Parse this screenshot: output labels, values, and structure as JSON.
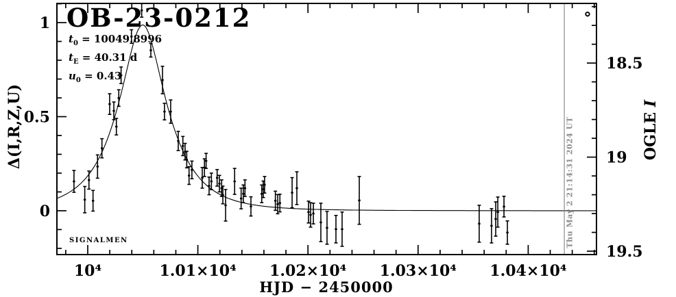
{
  "chart_data": {
    "type": "scatter",
    "title": "OB-23-0212",
    "watermark": "SIGNALMEN",
    "xlabel": "HJD − 2450000",
    "ylabel_left": "Δ(I,R,Z,U)",
    "ylabel_right": {
      "text": "OGLE ",
      "band": "I"
    },
    "params": [
      {
        "var": "t",
        "sub": "0",
        "val": " = 10049.8996"
      },
      {
        "var": "t",
        "sub": "E",
        "val": " = 40.31 d"
      },
      {
        "var": "u",
        "sub": "0",
        "val": " = 0.43"
      }
    ],
    "model": {
      "t0": 10049.8996,
      "tE": 40.31,
      "u0": 0.43,
      "type": "paczynski-point-lens"
    },
    "now_line": {
      "x": 10432.8,
      "label": "Thu May 2 21:14:31 2024 UT"
    },
    "extra_point": {
      "x": 10453.9,
      "y": 1.045,
      "marker": "open-circle"
    },
    "axes": {
      "x": {
        "min": 9972,
        "max": 10462,
        "minor_step": 20,
        "major": [
          {
            "v": 10000,
            "t": "10⁴"
          },
          {
            "v": 10100,
            "t": "1.01×10⁴"
          },
          {
            "v": 10200,
            "t": "1.02×10⁴"
          },
          {
            "v": 10300,
            "t": "1.03×10⁴"
          },
          {
            "v": 10400,
            "t": "1.04×10⁴"
          }
        ]
      },
      "y": {
        "min": -0.233,
        "max": 1.102,
        "minor_step": 0.1,
        "major": [
          {
            "v": 0,
            "t": "0"
          },
          {
            "v": 0.5,
            "t": "0.5"
          },
          {
            "v": 1,
            "t": "1"
          }
        ]
      },
      "y_right": {
        "base": 19.285,
        "minor_step": 0.1,
        "major": [
          {
            "v": 18.5,
            "t": "18.5"
          },
          {
            "v": 19,
            "t": "19"
          },
          {
            "v": 19.5,
            "t": "19.5"
          }
        ]
      }
    },
    "colors": {
      "fg": "#000000",
      "bg": "#ffffff",
      "gray": "#8c8c8c"
    },
    "points_format": [
      "hjd_minus_2450000",
      "delta_mag",
      "err"
    ],
    "points": [
      [
        9987.5,
        0.156,
        0.058
      ],
      [
        9997.3,
        0.059,
        0.07
      ],
      [
        10001.1,
        0.163,
        0.048
      ],
      [
        10004.8,
        0.053,
        0.055
      ],
      [
        10008.9,
        0.235,
        0.062
      ],
      [
        10012.9,
        0.332,
        0.051
      ],
      [
        10019.9,
        0.567,
        0.055
      ],
      [
        10023.7,
        0.531,
        0.047
      ],
      [
        10026.0,
        0.447,
        0.044
      ],
      [
        10028.2,
        0.599,
        0.044
      ],
      [
        10030.3,
        0.72,
        0.044
      ],
      [
        10039.7,
        0.926,
        0.036
      ],
      [
        10049.0,
        1.065,
        0.036
      ],
      [
        10057.3,
        0.853,
        0.036
      ],
      [
        10067.9,
        0.695,
        0.073
      ],
      [
        10069.7,
        0.527,
        0.044
      ],
      [
        10075.3,
        0.527,
        0.062
      ],
      [
        10082.2,
        0.371,
        0.051
      ],
      [
        10086.4,
        0.344,
        0.051
      ],
      [
        10088.4,
        0.314,
        0.044
      ],
      [
        10089.9,
        0.272,
        0.044
      ],
      [
        10092.0,
        0.187,
        0.047
      ],
      [
        10094.6,
        0.217,
        0.047
      ],
      [
        10104.0,
        0.175,
        0.055
      ],
      [
        10106.0,
        0.229,
        0.047
      ],
      [
        10107.5,
        0.265,
        0.04
      ],
      [
        10110.2,
        0.132,
        0.047
      ],
      [
        10112.3,
        0.156,
        0.044
      ],
      [
        10117.5,
        0.175,
        0.044
      ],
      [
        10119.6,
        0.144,
        0.044
      ],
      [
        10121.6,
        0.12,
        0.044
      ],
      [
        10122.7,
        0.084,
        0.047
      ],
      [
        10125.2,
        0.029,
        0.084
      ],
      [
        10133.4,
        0.156,
        0.069
      ],
      [
        10139.3,
        0.065,
        0.055
      ],
      [
        10141.3,
        0.09,
        0.047
      ],
      [
        10142.8,
        0.12,
        0.044
      ],
      [
        10148.2,
        0.023,
        0.051
      ],
      [
        10158.0,
        0.09,
        0.047
      ],
      [
        10159.4,
        0.114,
        0.044
      ],
      [
        10160.6,
        0.138,
        0.044
      ],
      [
        10170.4,
        0.053,
        0.051
      ],
      [
        10172.5,
        0.035,
        0.051
      ],
      [
        10174.5,
        0.041,
        0.047
      ],
      [
        10185.6,
        0.096,
        0.08
      ],
      [
        10189.9,
        0.12,
        0.087
      ],
      [
        10200.5,
        -0.007,
        0.058
      ],
      [
        10202.4,
        -0.022,
        0.065
      ],
      [
        10204.9,
        -0.015,
        0.055
      ],
      [
        10211.7,
        -0.062,
        0.102
      ],
      [
        10217.3,
        -0.091,
        0.087
      ],
      [
        10225.4,
        -0.098,
        0.073
      ],
      [
        10231.0,
        -0.098,
        0.091
      ],
      [
        10246.6,
        0.055,
        0.127
      ],
      [
        10355.5,
        -0.069,
        0.098
      ],
      [
        10366.7,
        -0.08,
        0.091
      ],
      [
        10370.5,
        -0.044,
        0.091
      ],
      [
        10372.4,
        -0.007,
        0.08
      ],
      [
        10378.0,
        0.022,
        0.055
      ],
      [
        10381.1,
        -0.116,
        0.062
      ]
    ]
  }
}
